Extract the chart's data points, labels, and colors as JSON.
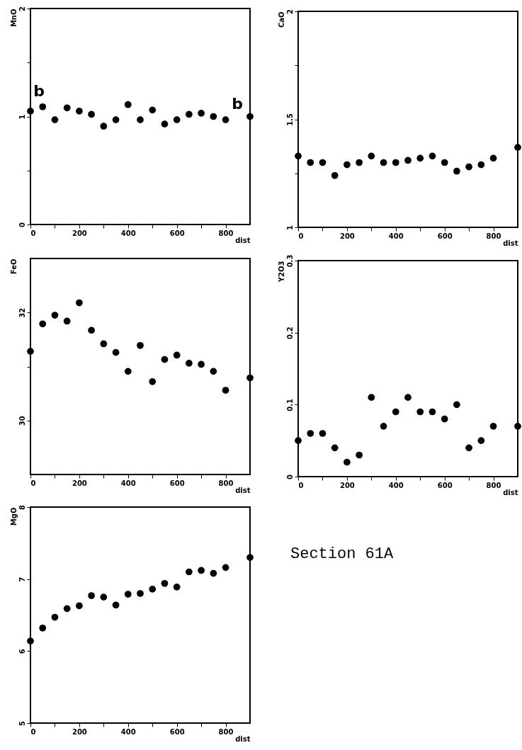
{
  "chart_data": [
    {
      "type": "scatter",
      "ylabel": "MnO",
      "xlabel": "dist",
      "color": "#000000",
      "marker": "circle",
      "x": [
        0,
        50,
        100,
        150,
        200,
        250,
        300,
        350,
        400,
        450,
        500,
        550,
        600,
        650,
        700,
        750,
        800,
        900
      ],
      "values": [
        1.05,
        1.09,
        0.97,
        1.08,
        1.05,
        1.02,
        0.91,
        0.97,
        1.11,
        0.97,
        1.06,
        0.93,
        0.97,
        1.02,
        1.03,
        1.0,
        0.97,
        1.0
      ],
      "xlim": [
        0,
        900
      ],
      "xticks": [
        0,
        {
          "value": 100,
          "label": null
        },
        200,
        {
          "value": 300,
          "label": null
        },
        400,
        {
          "value": 500,
          "label": null
        },
        600,
        {
          "value": 700,
          "label": null
        },
        800
      ],
      "ylim": [
        0,
        2
      ],
      "yticks": [
        0,
        {
          "value": 0.5,
          "label": null
        },
        1,
        {
          "value": 1.5,
          "label": null
        },
        2
      ],
      "annotations": [
        {
          "text": "b",
          "x": 0,
          "y": 1.05
        },
        {
          "text": "b",
          "x": 900,
          "y": 1.0
        }
      ]
    },
    {
      "type": "scatter",
      "ylabel": "CaO",
      "xlabel": "dist",
      "color": "#000000",
      "marker": "circle",
      "x": [
        0,
        50,
        100,
        150,
        200,
        250,
        300,
        350,
        400,
        450,
        500,
        550,
        600,
        650,
        700,
        750,
        800,
        900
      ],
      "values": [
        1.33,
        1.3,
        1.3,
        1.24,
        1.29,
        1.3,
        1.33,
        1.3,
        1.3,
        1.31,
        1.32,
        1.33,
        1.3,
        1.26,
        1.28,
        1.29,
        1.32,
        1.37
      ],
      "xlim": [
        0,
        900
      ],
      "xticks": [
        0,
        {
          "value": 100,
          "label": null
        },
        200,
        {
          "value": 300,
          "label": null
        },
        400,
        {
          "value": 500,
          "label": null
        },
        600,
        {
          "value": 700,
          "label": null
        },
        800
      ],
      "ylim": [
        1,
        2
      ],
      "yticks": [
        1,
        {
          "value": 1.25,
          "label": null
        },
        1.5,
        {
          "value": 1.75,
          "label": null
        },
        2
      ]
    },
    {
      "type": "scatter",
      "ylabel": "FeO",
      "xlabel": "dist",
      "color": "#000000",
      "marker": "circle",
      "x": [
        0,
        50,
        100,
        150,
        200,
        250,
        300,
        350,
        400,
        450,
        500,
        550,
        600,
        650,
        700,
        750,
        800,
        900
      ],
      "values": [
        31.28,
        31.79,
        31.95,
        31.84,
        32.18,
        31.67,
        31.42,
        31.26,
        30.91,
        31.39,
        30.72,
        31.13,
        31.21,
        31.06,
        31.04,
        30.91,
        30.56,
        30.79
      ],
      "xlim": [
        0,
        900
      ],
      "xticks": [
        0,
        {
          "value": 100,
          "label": null
        },
        200,
        {
          "value": 300,
          "label": null
        },
        400,
        {
          "value": 500,
          "label": null
        },
        600,
        {
          "value": 700,
          "label": null
        },
        800
      ],
      "ylim": [
        29,
        33
      ],
      "yticks": [
        30,
        {
          "value": 31,
          "label": null
        },
        32
      ]
    },
    {
      "type": "scatter",
      "ylabel": "Y2O3",
      "xlabel": "dist",
      "color": "#000000",
      "marker": "circle",
      "x": [
        0,
        50,
        100,
        150,
        200,
        250,
        300,
        350,
        400,
        450,
        500,
        550,
        600,
        650,
        700,
        750,
        800,
        900
      ],
      "values": [
        0.05,
        0.06,
        0.06,
        0.04,
        0.02,
        0.03,
        0.11,
        0.07,
        0.09,
        0.11,
        0.09,
        0.09,
        0.08,
        0.1,
        0.04,
        0.05,
        0.07,
        0.07
      ],
      "xlim": [
        0,
        900
      ],
      "xticks": [
        0,
        {
          "value": 100,
          "label": null
        },
        200,
        {
          "value": 300,
          "label": null
        },
        400,
        {
          "value": 500,
          "label": null
        },
        600,
        {
          "value": 700,
          "label": null
        },
        800
      ],
      "ylim": [
        0,
        0.3
      ],
      "yticks": [
        0,
        0.1,
        0.2,
        0.3
      ]
    },
    {
      "type": "scatter",
      "ylabel": "MgO",
      "xlabel": "dist",
      "color": "#000000",
      "marker": "circle",
      "x": [
        0,
        50,
        100,
        150,
        200,
        250,
        300,
        350,
        400,
        450,
        500,
        550,
        600,
        650,
        700,
        750,
        800,
        900
      ],
      "values": [
        6.14,
        6.32,
        6.47,
        6.59,
        6.63,
        6.77,
        6.75,
        6.64,
        6.79,
        6.8,
        6.86,
        6.94,
        6.89,
        7.1,
        7.12,
        7.08,
        7.16,
        7.3
      ],
      "xlim": [
        0,
        900
      ],
      "xticks": [
        0,
        {
          "value": 100,
          "label": null
        },
        200,
        {
          "value": 300,
          "label": null
        },
        400,
        {
          "value": 500,
          "label": null
        },
        600,
        {
          "value": 700,
          "label": null
        },
        800
      ],
      "ylim": [
        5,
        8
      ],
      "yticks": [
        5,
        6,
        7,
        8
      ]
    },
    {
      "type": "other",
      "title": "Section 61A"
    }
  ]
}
